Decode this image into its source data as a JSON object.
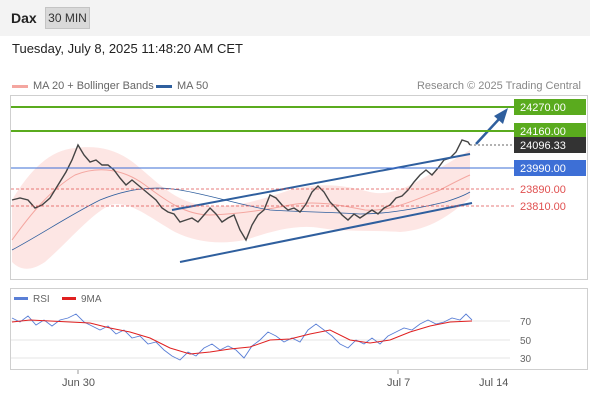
{
  "header": {
    "symbol": "Dax",
    "timeframe": "30 MIN"
  },
  "datetime": "Tuesday, July 8, 2025 11:48:20 AM CET",
  "legend": {
    "ma20": "MA 20 + Bollinger Bands",
    "ma50": "MA 50",
    "ma20_color": "#e87b7b",
    "ma50_color": "#2f5f9e"
  },
  "credit": "Research © 2025 Trading Central",
  "levels": [
    {
      "value": "24270.00",
      "color": "#5aab1e",
      "kind": "resistance"
    },
    {
      "value": "24160.00",
      "color": "#5aab1e",
      "kind": "resistance"
    },
    {
      "value": "24096.33",
      "color": "#333333",
      "kind": "last"
    },
    {
      "value": "23990.00",
      "color": "#3d6fd6",
      "kind": "pivot"
    },
    {
      "value": "23890.00",
      "color": "#e05050",
      "kind": "support"
    },
    {
      "value": "23810.00",
      "color": "#e05050",
      "kind": "support"
    }
  ],
  "rsi_legend": {
    "rsi": "RSI",
    "ma9": "9MA",
    "rsi_color": "#5a7fd6",
    "ma9_color": "#e02020"
  },
  "rsi_levels": [
    "70",
    "50",
    "30"
  ],
  "x_axis": {
    "labels": [
      "Jun 30",
      "Jul 7",
      "Jul 14"
    ]
  }
}
